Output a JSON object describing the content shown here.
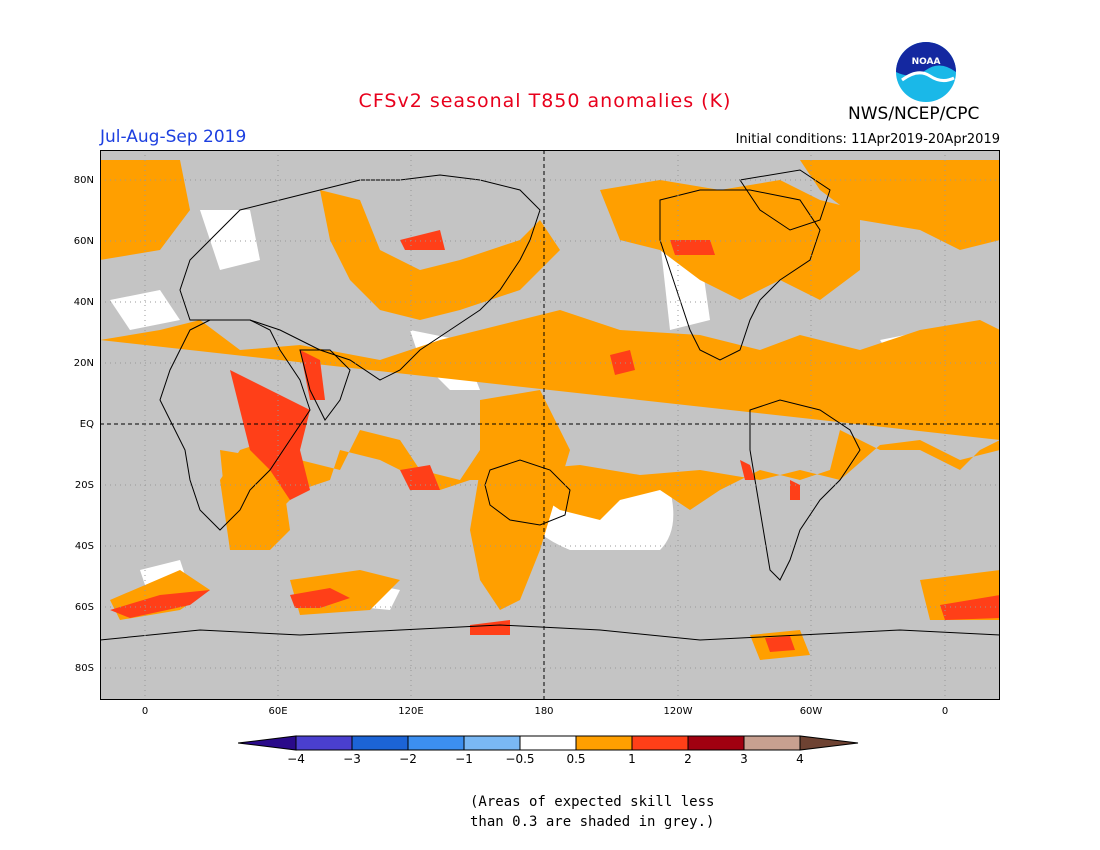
{
  "header": {
    "title": "CFSv2 seasonal T850 anomalies (K)",
    "season": "Jul-Aug-Sep 2019",
    "initial_conditions": "Initial conditions: 11Apr2019-20Apr2019",
    "agency": "NWS/NCEP/CPC",
    "logo_text": "NOAA",
    "title_color": "#e8001c",
    "season_color": "#1c3fe0"
  },
  "map": {
    "lat_labels": [
      "80N",
      "60N",
      "40N",
      "20N",
      "EQ",
      "20S",
      "40S",
      "60S",
      "80S"
    ],
    "lon_labels": [
      "0",
      "60E",
      "120E",
      "180",
      "120W",
      "60W",
      "0"
    ],
    "colors": {
      "ocean_land_grey": "#c4c4c4",
      "white": "#ffffff",
      "orange": "#ff9f00",
      "red_orange": "#ff3f18",
      "coast": "#000000"
    }
  },
  "colorbar": {
    "labels": [
      "−4",
      "−3",
      "−2",
      "−1",
      "−0.5",
      "0.5",
      "1",
      "2",
      "3",
      "4"
    ],
    "colors": [
      "#2a0a8a",
      "#4a3fce",
      "#1c64d6",
      "#3c8ff0",
      "#7ab8f4",
      "#ffffff",
      "#ff9f00",
      "#ff3f18",
      "#a00010",
      "#c8a090",
      "#6e4232"
    ]
  },
  "footnote": {
    "line1": "(Areas of expected skill less",
    "line2": "than 0.3 are shaded in grey.)"
  }
}
